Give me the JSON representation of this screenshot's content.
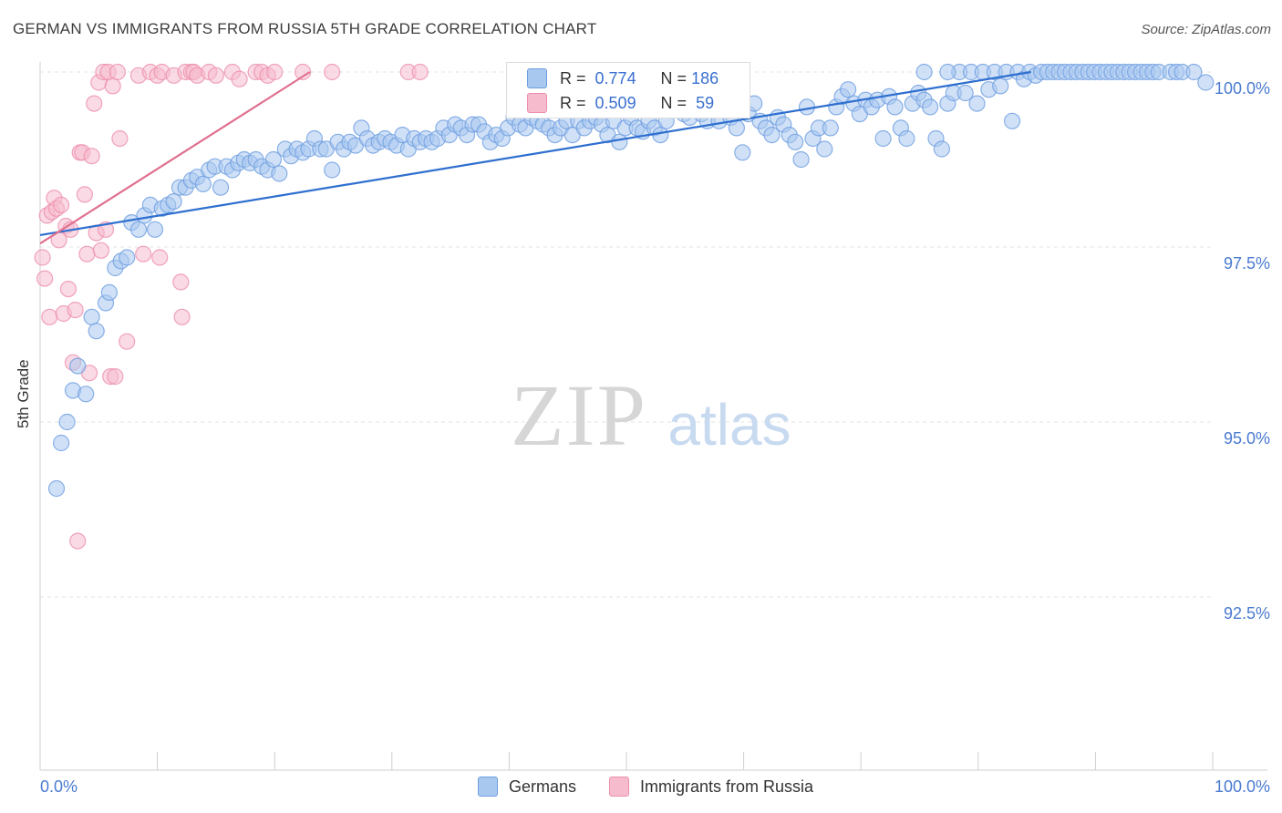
{
  "title": "GERMAN VS IMMIGRANTS FROM RUSSIA 5TH GRADE CORRELATION CHART",
  "source": "Source: ZipAtlas.com",
  "watermark": {
    "zip": "ZIP",
    "atlas": "atlas"
  },
  "colors": {
    "blue_fill": "#a9c8f0",
    "blue_stroke": "#6e9ee0",
    "blue_line": "#2e6fcf",
    "pink_fill": "#f6bccd",
    "pink_stroke": "#ec8fac",
    "pink_line": "#e0708f",
    "tick_text": "#4a7bd0",
    "grid": "#e3e3e3"
  },
  "stats": {
    "german": {
      "r_label": "R =",
      "r_value": "0.774",
      "n_label": "N =",
      "n_value": "186"
    },
    "russia": {
      "r_label": "R =",
      "r_value": "0.509",
      "n_label": "N =",
      "n_value": "59"
    }
  },
  "legend": {
    "german": "Germans",
    "russia": "Immigrants from Russia"
  },
  "chart_data": {
    "type": "scatter",
    "title": "GERMAN VS IMMIGRANTS FROM RUSSIA 5TH GRADE CORRELATION CHART",
    "xlabel": "",
    "ylabel": "5th Grade",
    "xlim": [
      0,
      100
    ],
    "ylim": [
      90.2,
      100.2
    ],
    "x_tick_labels": {
      "left": "0.0%",
      "right": "100.0%"
    },
    "y_ticks": [
      {
        "value": 100.0,
        "label": "100.0%"
      },
      {
        "value": 97.5,
        "label": "97.5%"
      },
      {
        "value": 95.0,
        "label": "95.0%"
      },
      {
        "value": 92.5,
        "label": "92.5%"
      }
    ],
    "series": [
      {
        "name": "Germans",
        "trend": {
          "x1": 0,
          "y1": 97.67,
          "x2": 84.5,
          "y2": 100.0
        },
        "points": [
          [
            1.4,
            94.05
          ],
          [
            1.8,
            94.7
          ],
          [
            2.3,
            95.0
          ],
          [
            2.8,
            95.45
          ],
          [
            3.2,
            95.8
          ],
          [
            3.9,
            95.4
          ],
          [
            4.4,
            96.5
          ],
          [
            4.8,
            96.3
          ],
          [
            5.6,
            96.7
          ],
          [
            5.9,
            96.85
          ],
          [
            6.4,
            97.2
          ],
          [
            6.9,
            97.3
          ],
          [
            7.4,
            97.35
          ],
          [
            7.8,
            97.85
          ],
          [
            8.4,
            97.75
          ],
          [
            8.9,
            97.95
          ],
          [
            9.4,
            98.1
          ],
          [
            9.8,
            97.75
          ],
          [
            10.4,
            98.05
          ],
          [
            10.9,
            98.1
          ],
          [
            11.4,
            98.15
          ],
          [
            11.9,
            98.35
          ],
          [
            12.4,
            98.35
          ],
          [
            12.9,
            98.45
          ],
          [
            13.4,
            98.5
          ],
          [
            13.9,
            98.4
          ],
          [
            14.4,
            98.6
          ],
          [
            14.9,
            98.65
          ],
          [
            15.4,
            98.35
          ],
          [
            15.9,
            98.65
          ],
          [
            16.4,
            98.6
          ],
          [
            16.9,
            98.7
          ],
          [
            17.4,
            98.75
          ],
          [
            17.9,
            98.7
          ],
          [
            18.4,
            98.75
          ],
          [
            18.9,
            98.65
          ],
          [
            19.4,
            98.6
          ],
          [
            19.9,
            98.75
          ],
          [
            20.4,
            98.55
          ],
          [
            20.9,
            98.9
          ],
          [
            21.4,
            98.8
          ],
          [
            21.9,
            98.9
          ],
          [
            22.4,
            98.85
          ],
          [
            22.9,
            98.9
          ],
          [
            23.4,
            99.05
          ],
          [
            23.9,
            98.9
          ],
          [
            24.4,
            98.9
          ],
          [
            24.9,
            98.6
          ],
          [
            25.4,
            99.0
          ],
          [
            25.9,
            98.9
          ],
          [
            26.4,
            99.0
          ],
          [
            26.9,
            98.95
          ],
          [
            27.4,
            99.2
          ],
          [
            27.9,
            99.05
          ],
          [
            28.4,
            98.95
          ],
          [
            28.9,
            99.0
          ],
          [
            29.4,
            99.05
          ],
          [
            29.9,
            99.0
          ],
          [
            30.4,
            98.95
          ],
          [
            30.9,
            99.1
          ],
          [
            31.4,
            98.9
          ],
          [
            31.9,
            99.05
          ],
          [
            32.4,
            99.0
          ],
          [
            32.9,
            99.05
          ],
          [
            33.4,
            99.0
          ],
          [
            33.9,
            99.05
          ],
          [
            34.4,
            99.2
          ],
          [
            34.9,
            99.1
          ],
          [
            35.4,
            99.25
          ],
          [
            35.9,
            99.2
          ],
          [
            36.4,
            99.1
          ],
          [
            36.9,
            99.25
          ],
          [
            37.4,
            99.25
          ],
          [
            37.9,
            99.15
          ],
          [
            38.4,
            99.0
          ],
          [
            38.9,
            99.1
          ],
          [
            39.4,
            99.05
          ],
          [
            39.9,
            99.2
          ],
          [
            40.4,
            99.35
          ],
          [
            40.9,
            99.25
          ],
          [
            41.4,
            99.2
          ],
          [
            41.9,
            99.35
          ],
          [
            42.4,
            99.3
          ],
          [
            42.9,
            99.25
          ],
          [
            43.4,
            99.2
          ],
          [
            43.9,
            99.1
          ],
          [
            44.4,
            99.2
          ],
          [
            44.9,
            99.3
          ],
          [
            45.4,
            99.1
          ],
          [
            45.9,
            99.3
          ],
          [
            46.4,
            99.2
          ],
          [
            46.9,
            99.3
          ],
          [
            47.4,
            99.35
          ],
          [
            47.9,
            99.25
          ],
          [
            48.4,
            99.1
          ],
          [
            48.9,
            99.3
          ],
          [
            49.4,
            99.0
          ],
          [
            49.9,
            99.2
          ],
          [
            50.4,
            99.35
          ],
          [
            50.9,
            99.2
          ],
          [
            51.4,
            99.15
          ],
          [
            51.9,
            99.3
          ],
          [
            52.4,
            99.2
          ],
          [
            52.9,
            99.1
          ],
          [
            53.4,
            99.3
          ],
          [
            53.9,
            99.45
          ],
          [
            54.4,
            99.6
          ],
          [
            54.9,
            99.4
          ],
          [
            55.4,
            99.35
          ],
          [
            55.9,
            99.5
          ],
          [
            56.4,
            99.4
          ],
          [
            56.9,
            99.3
          ],
          [
            57.4,
            99.45
          ],
          [
            57.9,
            99.3
          ],
          [
            58.4,
            99.5
          ],
          [
            58.9,
            99.35
          ],
          [
            59.4,
            99.2
          ],
          [
            59.9,
            98.85
          ],
          [
            60.4,
            99.4
          ],
          [
            60.9,
            99.55
          ],
          [
            61.4,
            99.3
          ],
          [
            61.9,
            99.2
          ],
          [
            62.4,
            99.1
          ],
          [
            62.9,
            99.35
          ],
          [
            63.4,
            99.25
          ],
          [
            63.9,
            99.1
          ],
          [
            64.4,
            99.0
          ],
          [
            64.9,
            98.75
          ],
          [
            65.4,
            99.5
          ],
          [
            65.9,
            99.05
          ],
          [
            66.4,
            99.2
          ],
          [
            66.9,
            98.9
          ],
          [
            67.4,
            99.2
          ],
          [
            67.9,
            99.5
          ],
          [
            68.4,
            99.65
          ],
          [
            68.9,
            99.75
          ],
          [
            69.4,
            99.55
          ],
          [
            69.9,
            99.4
          ],
          [
            70.4,
            99.6
          ],
          [
            70.9,
            99.5
          ],
          [
            71.4,
            99.6
          ],
          [
            71.9,
            99.05
          ],
          [
            72.4,
            99.65
          ],
          [
            72.9,
            99.5
          ],
          [
            73.4,
            99.2
          ],
          [
            73.9,
            99.05
          ],
          [
            74.4,
            99.55
          ],
          [
            74.9,
            99.7
          ],
          [
            75.4,
            99.6
          ],
          [
            75.9,
            99.5
          ],
          [
            76.4,
            99.05
          ],
          [
            76.9,
            98.9
          ],
          [
            77.4,
            99.55
          ],
          [
            77.9,
            99.7
          ],
          [
            78.4,
            100.0
          ],
          [
            78.9,
            99.7
          ],
          [
            79.4,
            100.0
          ],
          [
            79.9,
            99.55
          ],
          [
            80.4,
            100.0
          ],
          [
            80.9,
            99.75
          ],
          [
            81.4,
            100.0
          ],
          [
            81.9,
            99.8
          ],
          [
            82.4,
            100.0
          ],
          [
            82.9,
            99.3
          ],
          [
            83.4,
            100.0
          ],
          [
            83.9,
            99.9
          ],
          [
            84.4,
            100.0
          ],
          [
            84.9,
            99.95
          ],
          [
            85.4,
            100.0
          ],
          [
            85.9,
            100.0
          ],
          [
            86.4,
            100.0
          ],
          [
            86.9,
            100.0
          ],
          [
            87.4,
            100.0
          ],
          [
            87.9,
            100.0
          ],
          [
            88.4,
            100.0
          ],
          [
            88.9,
            100.0
          ],
          [
            89.4,
            100.0
          ],
          [
            89.9,
            100.0
          ],
          [
            90.4,
            100.0
          ],
          [
            90.9,
            100.0
          ],
          [
            91.4,
            100.0
          ],
          [
            91.9,
            100.0
          ],
          [
            92.4,
            100.0
          ],
          [
            92.9,
            100.0
          ],
          [
            93.4,
            100.0
          ],
          [
            93.9,
            100.0
          ],
          [
            94.4,
            100.0
          ],
          [
            94.9,
            100.0
          ],
          [
            95.4,
            100.0
          ],
          [
            96.4,
            100.0
          ],
          [
            96.9,
            100.0
          ],
          [
            97.4,
            100.0
          ],
          [
            98.4,
            100.0
          ],
          [
            99.4,
            99.85
          ],
          [
            75.4,
            100.0
          ],
          [
            77.4,
            100.0
          ]
        ]
      },
      {
        "name": "Immigrants from Russia",
        "trend": {
          "x1": 0,
          "y1": 97.55,
          "x2": 23.0,
          "y2": 100.0
        },
        "points": [
          [
            0.2,
            97.35
          ],
          [
            0.4,
            97.05
          ],
          [
            0.6,
            97.95
          ],
          [
            0.8,
            96.5
          ],
          [
            1.0,
            98.0
          ],
          [
            1.2,
            98.2
          ],
          [
            1.4,
            98.05
          ],
          [
            1.6,
            97.6
          ],
          [
            1.8,
            98.1
          ],
          [
            2.0,
            96.55
          ],
          [
            2.2,
            97.8
          ],
          [
            2.4,
            96.9
          ],
          [
            2.6,
            97.75
          ],
          [
            2.8,
            95.85
          ],
          [
            3.0,
            96.6
          ],
          [
            3.2,
            93.3
          ],
          [
            3.4,
            98.85
          ],
          [
            3.6,
            98.85
          ],
          [
            3.8,
            98.25
          ],
          [
            4.0,
            97.4
          ],
          [
            4.2,
            95.7
          ],
          [
            4.4,
            98.8
          ],
          [
            4.6,
            99.55
          ],
          [
            4.8,
            97.7
          ],
          [
            5.0,
            99.85
          ],
          [
            5.2,
            97.45
          ],
          [
            5.4,
            100.0
          ],
          [
            5.6,
            97.75
          ],
          [
            5.8,
            100.0
          ],
          [
            6.0,
            95.65
          ],
          [
            6.2,
            99.8
          ],
          [
            6.4,
            95.65
          ],
          [
            6.6,
            100.0
          ],
          [
            6.8,
            99.05
          ],
          [
            7.4,
            96.15
          ],
          [
            8.4,
            99.95
          ],
          [
            8.8,
            97.4
          ],
          [
            9.4,
            100.0
          ],
          [
            10.0,
            99.95
          ],
          [
            10.2,
            97.35
          ],
          [
            10.4,
            100.0
          ],
          [
            11.4,
            99.95
          ],
          [
            12.0,
            97.0
          ],
          [
            12.1,
            96.5
          ],
          [
            12.4,
            100.0
          ],
          [
            12.9,
            100.0
          ],
          [
            13.1,
            100.0
          ],
          [
            13.4,
            99.95
          ],
          [
            14.4,
            100.0
          ],
          [
            15.0,
            99.95
          ],
          [
            16.4,
            100.0
          ],
          [
            17.0,
            99.9
          ],
          [
            18.4,
            100.0
          ],
          [
            18.9,
            100.0
          ],
          [
            19.4,
            99.95
          ],
          [
            20.0,
            100.0
          ],
          [
            22.4,
            100.0
          ],
          [
            24.9,
            100.0
          ],
          [
            31.4,
            100.0
          ],
          [
            32.4,
            100.0
          ]
        ]
      }
    ],
    "grid": true,
    "legend_position": "bottom"
  }
}
